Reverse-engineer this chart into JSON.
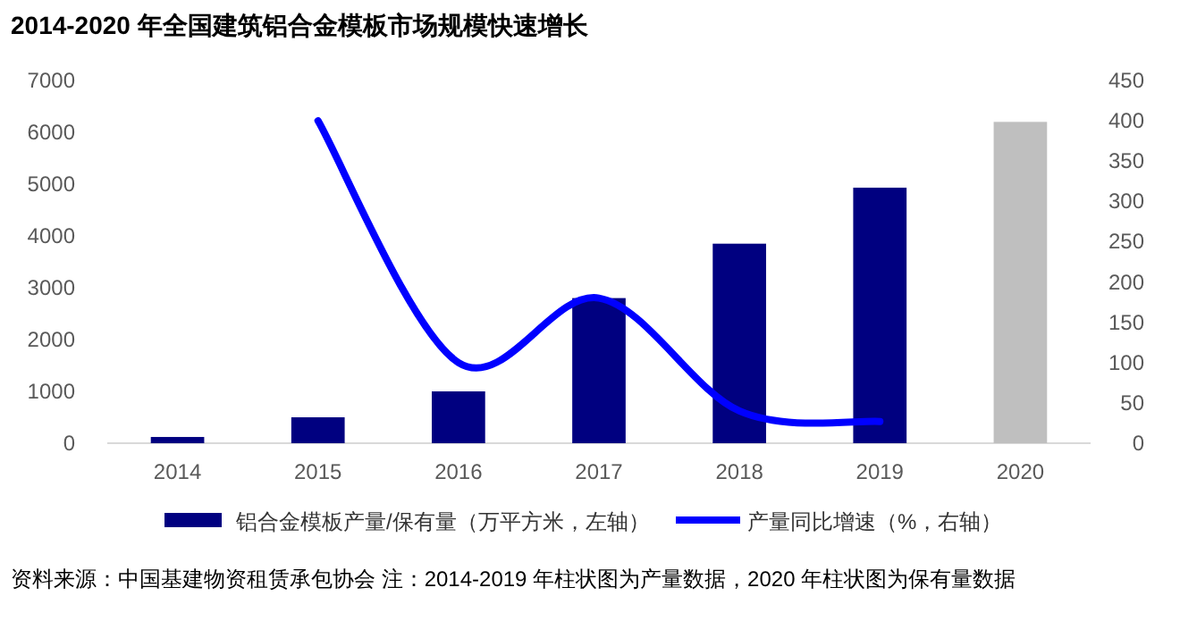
{
  "chart_data": {
    "type": "bar",
    "title": "2014-2020 年全国建筑铝合金模板市场规模快速增长",
    "categories": [
      "2014",
      "2015",
      "2016",
      "2017",
      "2018",
      "2019",
      "2020"
    ],
    "series": [
      {
        "name": "铝合金模板产量/保有量（万平方米，左轴）",
        "color": "#000080",
        "colors": [
          "#000080",
          "#000080",
          "#000080",
          "#000080",
          "#000080",
          "#000080",
          "#bfbfbf"
        ],
        "values": [
          120,
          500,
          1000,
          2800,
          3850,
          4930,
          6200
        ]
      },
      {
        "name": "产量同比增速（%，右轴）",
        "type": "line",
        "axis": "y2",
        "color": "#0000ff",
        "values": [
          null,
          400,
          100,
          180,
          40,
          27,
          null
        ]
      }
    ],
    "ylim": [
      0,
      7000
    ],
    "yticks": [
      0,
      1000,
      2000,
      3000,
      4000,
      5000,
      6000,
      7000
    ],
    "y2lim": [
      0,
      450
    ],
    "y2ticks": [
      0,
      50,
      100,
      150,
      200,
      250,
      300,
      350,
      400,
      450
    ],
    "grid": false,
    "legend": "bottom",
    "annotations": [
      "资料来源：中国基建物资租赁承包协会 注：2014-2019 年柱状图为产量数据，2020 年柱状图为保有量数据"
    ]
  }
}
